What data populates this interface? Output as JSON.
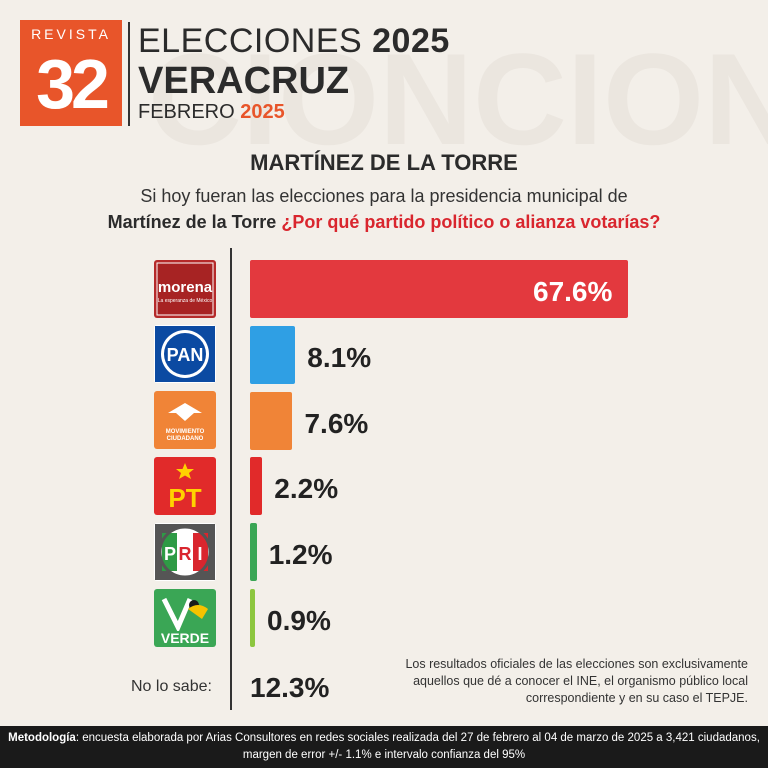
{
  "header": {
    "logo_top": "REVISTA",
    "logo_number": "32",
    "title_light": "ELECCIONES",
    "title_bold": "2025",
    "state": "VERACRUZ",
    "month": "FEBRERO",
    "year": "2025"
  },
  "watermark": "CIONCION",
  "municipality": "MARTÍNEZ DE LA TORRE",
  "question": {
    "line1": "Si hoy fueran las elecciones para la presidencia municipal de",
    "place": "Martínez de la Torre",
    "ask": "¿Por qué partido político o alianza votarías?"
  },
  "parties": {
    "morena": {
      "name": "morena",
      "tagline": "La esperanza de México"
    },
    "pan": {
      "name": "PAN"
    },
    "mc": {
      "line1": "MOVIMIENTO",
      "line2": "CIUDADANO"
    },
    "pt": {
      "name": "PT"
    },
    "pri": {
      "p": "P",
      "r": "R",
      "i": "I"
    },
    "verde": {
      "name": "VERDE"
    }
  },
  "chart_data": {
    "type": "bar",
    "orientation": "horizontal",
    "categories": [
      "morena",
      "PAN",
      "MOVIMIENTO CIUDADANO",
      "PT",
      "PRI",
      "VERDE"
    ],
    "values": [
      67.6,
      8.1,
      7.6,
      2.2,
      1.2,
      0.9
    ],
    "labels": [
      "67.6%",
      "8.1%",
      "7.6%",
      "2.2%",
      "1.2%",
      "0.9%"
    ],
    "colors": [
      "#e3393e",
      "#2f9fe4",
      "#f08437",
      "#e12a2a",
      "#3aa655",
      "#8cc63f"
    ],
    "xlim": [
      0,
      67.6
    ],
    "no_sabe_label": "No lo sabe:",
    "no_sabe_value": "12.3%"
  },
  "note": "Los resultados oficiales de las elecciones son exclusivamente aquellos que dé a conocer el INE, el organismo público local correspondiente y en su caso el TEPJE.",
  "footer": {
    "label": "Metodología",
    "text": ": encuesta elaborada por Arias Consultores en redes sociales realizada del 27 de febrero al 04 de marzo de 2025 a 3,421 ciudadanos, margen de error +/- 1.1% e intervalo confianza del 95%"
  }
}
